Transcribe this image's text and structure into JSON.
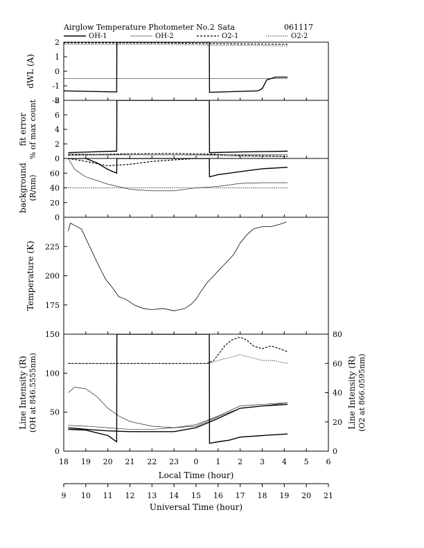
{
  "header": {
    "title": "Airglow Temperature Photometer No.2",
    "site": "Sata",
    "date": "061117"
  },
  "legend": [
    {
      "name": "OH-1",
      "dash": "solid",
      "width": 1.4
    },
    {
      "name": "OH-2",
      "dash": "solid",
      "width": 0.6
    },
    {
      "name": "O2-1",
      "dash": "3,2",
      "width": 1.2
    },
    {
      "name": "O2-2",
      "dash": "1.5,1.5",
      "width": 0.7
    }
  ],
  "x_axes": {
    "local": {
      "label": "Local Time (hour)",
      "ticks": [
        "18",
        "19",
        "20",
        "21",
        "22",
        "23",
        "0",
        "1",
        "2",
        "3",
        "4",
        "5",
        "6"
      ]
    },
    "universal": {
      "label": "Universal Time (hour)",
      "ticks": [
        "9",
        "10",
        "11",
        "12",
        "13",
        "14",
        "15",
        "16",
        "17",
        "18",
        "19",
        "20",
        "21"
      ]
    }
  },
  "chart_data": [
    {
      "type": "line",
      "panel": "dwl",
      "ylabel": "dWL (A)",
      "ylim": [
        -2,
        2
      ],
      "yticks": [
        "2",
        "1",
        "0",
        "-1",
        "-2"
      ],
      "x_unit": "universal time (hour)",
      "series": [
        {
          "name": "OH-1",
          "x": [
            9.0,
            11.3,
            11.4,
            11.41,
            15.6,
            15.61,
            17.8,
            18.0,
            18.2,
            18.6,
            19.15
          ],
          "values": [
            -1.35,
            -1.42,
            -1.42,
            2.0,
            2.0,
            -1.45,
            -1.35,
            -1.2,
            -0.6,
            -0.4,
            -0.4
          ]
        },
        {
          "name": "OH-2",
          "x": [
            9.0,
            10.0,
            11.0,
            12.0,
            13.0,
            14.0,
            15.0,
            16.0,
            17.0,
            18.0,
            19.15
          ],
          "values": [
            -0.5,
            -0.5,
            -0.5,
            -0.5,
            -0.5,
            -0.5,
            -0.5,
            -0.5,
            -0.5,
            -0.5,
            -0.5
          ]
        },
        {
          "name": "O2-1",
          "x": [
            9.0,
            13.0,
            15.6,
            19.15
          ],
          "values": [
            1.95,
            1.95,
            1.9,
            1.85
          ]
        },
        {
          "name": "O2-2",
          "x": [
            9.0,
            13.0,
            15.6,
            19.15
          ],
          "values": [
            1.85,
            1.85,
            1.8,
            1.75
          ]
        }
      ]
    },
    {
      "type": "line",
      "panel": "fit_error",
      "ylabel": [
        "fit error",
        "% of max count"
      ],
      "ylim": [
        0,
        8
      ],
      "yticks": [
        "8",
        "6",
        "4",
        "2",
        "0"
      ],
      "x_unit": "universal time (hour)",
      "series": [
        {
          "name": "OH-1",
          "x": [
            9.2,
            11.3,
            11.4,
            11.41,
            15.6,
            15.61,
            17.0,
            19.15
          ],
          "values": [
            0.8,
            1.0,
            1.0,
            8.0,
            8.0,
            0.8,
            0.9,
            1.0
          ]
        },
        {
          "name": "OH-2",
          "x": [
            9.2,
            10.5,
            12.0,
            14.0,
            15.6,
            17.0,
            19.15
          ],
          "values": [
            0.6,
            0.55,
            0.5,
            0.5,
            0.5,
            0.5,
            0.5
          ]
        },
        {
          "name": "O2-1",
          "x": [
            9.2,
            10.5,
            12.0,
            14.0,
            15.6,
            17.0,
            19.15
          ],
          "values": [
            0.5,
            0.55,
            0.65,
            0.7,
            0.6,
            0.4,
            0.3
          ]
        },
        {
          "name": "O2-2",
          "x": [
            9.2,
            10.5,
            12.0,
            14.0,
            15.6,
            17.0,
            19.15
          ],
          "values": [
            0.4,
            0.45,
            0.5,
            0.5,
            0.45,
            0.3,
            0.25
          ]
        }
      ]
    },
    {
      "type": "line",
      "panel": "background",
      "ylabel": [
        "background",
        "(R/nm)"
      ],
      "ylim": [
        0,
        80
      ],
      "yticks": [
        "60",
        "40",
        "20",
        "0"
      ],
      "x_unit": "universal time (hour)",
      "series": [
        {
          "name": "OH-1",
          "x": [
            9.2,
            10.0,
            10.5,
            11.0,
            11.4,
            11.41,
            15.6,
            15.61,
            16.0,
            17.0,
            18.0,
            19.15
          ],
          "values": [
            80,
            80,
            74,
            65,
            60,
            80,
            80,
            55,
            58,
            62,
            66,
            68
          ]
        },
        {
          "name": "OH-2",
          "x": [
            9.2,
            9.5,
            10.0,
            11.0,
            12.0,
            13.0,
            14.0,
            15.0,
            16.0,
            17.0,
            18.0,
            19.15
          ],
          "values": [
            80,
            65,
            55,
            45,
            38,
            36,
            36,
            40,
            42,
            46,
            47,
            47
          ]
        },
        {
          "name": "O2-1",
          "x": [
            9.2,
            10.0,
            11.0,
            12.0,
            13.0,
            14.0,
            15.0,
            15.6,
            15.61,
            16.0,
            17.0,
            19.15
          ],
          "values": [
            80,
            76,
            70,
            72,
            76,
            78,
            80,
            80,
            80,
            80,
            80,
            80
          ]
        },
        {
          "name": "O2-2",
          "x": [
            9.2,
            19.15
          ],
          "values": [
            40,
            40
          ]
        }
      ]
    },
    {
      "type": "line",
      "panel": "temperature",
      "ylabel": "Temperature (K)",
      "ylim": [
        150,
        250
      ],
      "yticks": [
        "225",
        "200",
        "175"
      ],
      "x_unit": "universal time (hour)",
      "series": [
        {
          "name": "OH",
          "x": [
            9.2,
            9.3,
            9.5,
            9.8,
            10.0,
            10.3,
            10.6,
            10.9,
            11.2,
            11.5,
            11.8,
            12.2,
            12.6,
            13.0,
            13.5,
            14.0,
            14.5,
            14.8,
            15.0,
            15.2,
            15.5,
            15.8,
            16.0,
            16.3,
            16.7,
            17.0,
            17.3,
            17.6,
            18.0,
            18.4,
            18.8,
            19.1
          ],
          "values": [
            238,
            245,
            243,
            240,
            232,
            220,
            208,
            197,
            190,
            182,
            180,
            175,
            172,
            171,
            172,
            170,
            172,
            176,
            180,
            186,
            194,
            200,
            204,
            210,
            218,
            228,
            235,
            240,
            242,
            242,
            244,
            246
          ]
        }
      ]
    },
    {
      "type": "line",
      "panel": "line_intensity",
      "ylabel_left": [
        "Line Intensity (R)",
        "(OH at 846.5555nm)"
      ],
      "ylabel_right": [
        "Line Intensity (R)",
        "(O2 at 866.0595nm)"
      ],
      "ylim_left": [
        0,
        150
      ],
      "ylim_right": [
        0,
        80
      ],
      "yticks_left": [
        "150",
        "100",
        "50",
        "0"
      ],
      "yticks_right": [
        "80",
        "60",
        "40",
        "20",
        "0"
      ],
      "x_unit": "universal time (hour)",
      "series": [
        {
          "name": "OH-1",
          "axis": "left",
          "x": [
            9.2,
            10.0,
            11.0,
            11.4,
            11.41,
            15.6,
            15.61,
            16.0,
            16.5,
            17.0,
            18.0,
            19.15
          ],
          "values": [
            28,
            27,
            20,
            12,
            150,
            150,
            10,
            12,
            14,
            18,
            20,
            22
          ]
        },
        {
          "name": "OH-2",
          "axis": "left",
          "x": [
            9.2,
            9.5,
            10.0,
            10.5,
            11.0,
            11.5,
            12.0,
            13.0,
            14.0,
            15.0,
            16.0,
            17.0,
            18.0,
            19.15
          ],
          "values": [
            75,
            82,
            80,
            70,
            55,
            45,
            38,
            32,
            30,
            32,
            44,
            55,
            58,
            62
          ]
        },
        {
          "name": "O2-1",
          "axis": "right",
          "x": [
            9.2,
            15.5,
            15.8,
            16.0,
            16.3,
            16.6,
            17.0,
            17.3,
            17.6,
            18.0,
            18.4,
            18.8,
            19.15
          ],
          "values": [
            60,
            60,
            62,
            66,
            72,
            76,
            78,
            76,
            72,
            70,
            72,
            70,
            68
          ]
        },
        {
          "name": "O2-2",
          "axis": "right",
          "x": [
            9.2,
            15.6,
            16.0,
            16.5,
            17.0,
            17.5,
            18.0,
            18.5,
            19.15
          ],
          "values": [
            60,
            60,
            62,
            64,
            66,
            64,
            62,
            62,
            60
          ]
        },
        {
          "name": "OH-1-low",
          "axis": "left",
          "x": [
            9.2,
            10.0,
            11.0,
            12.0,
            13.0,
            14.0,
            15.0,
            16.0,
            17.0,
            18.0,
            19.15
          ],
          "values": [
            30,
            28,
            26,
            25,
            25,
            25,
            30,
            42,
            55,
            58,
            60
          ]
        },
        {
          "name": "OH-2-low",
          "axis": "left",
          "x": [
            9.2,
            10.0,
            11.0,
            12.0,
            13.0,
            14.0,
            15.0,
            16.0,
            17.0,
            18.0,
            19.15
          ],
          "values": [
            33,
            32,
            30,
            28,
            28,
            30,
            34,
            45,
            58,
            60,
            62
          ]
        }
      ]
    }
  ]
}
